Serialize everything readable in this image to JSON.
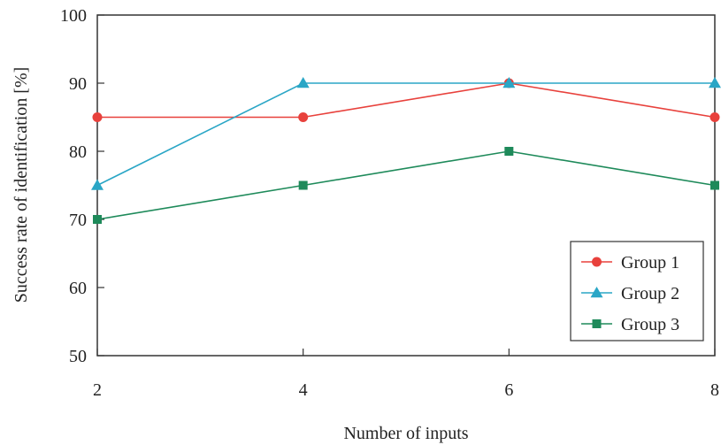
{
  "chart_data": {
    "type": "line",
    "title": "",
    "xlabel": "Number of inputs",
    "ylabel": "Success rate of identification [%]",
    "x": [
      2,
      4,
      6,
      8
    ],
    "xlim": [
      2,
      8
    ],
    "ylim": [
      50,
      100
    ],
    "xticks": [
      "2",
      "4",
      "6",
      "8"
    ],
    "yticks": [
      "50",
      "60",
      "70",
      "80",
      "90",
      "100"
    ],
    "grid": false,
    "legend_position": "bottom-right",
    "series": [
      {
        "name": "Group 1",
        "values": [
          85,
          85,
          90,
          85
        ],
        "color": "#e8413c",
        "marker": "circle"
      },
      {
        "name": "Group 2",
        "values": [
          75,
          90,
          90,
          90
        ],
        "color": "#2aa6c6",
        "marker": "triangle"
      },
      {
        "name": "Group 3",
        "values": [
          70,
          75,
          80,
          75
        ],
        "color": "#1e8a5a",
        "marker": "square"
      }
    ]
  }
}
